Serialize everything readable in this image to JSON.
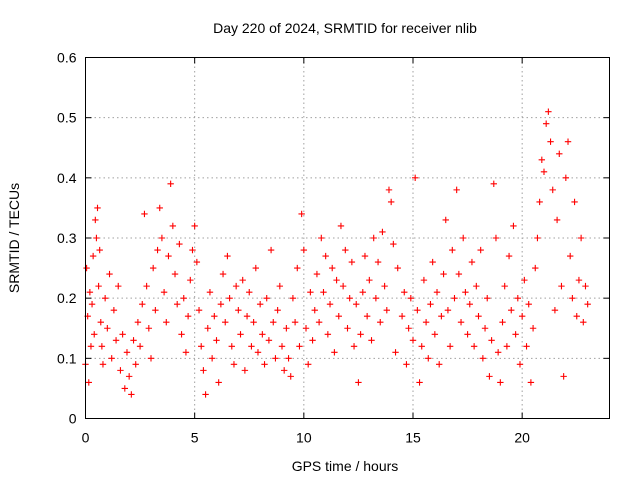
{
  "chart_data": {
    "type": "scatter",
    "title": "Day 220 of 2024, SRMTID for receiver nlib",
    "xlabel": "GPS time / hours",
    "ylabel": "SRMTID / TECUs",
    "xlim": [
      0,
      24
    ],
    "ylim": [
      0,
      0.6
    ],
    "x_ticks": [
      0,
      5,
      10,
      15,
      20
    ],
    "x_tick_labels": [
      "0",
      "5",
      "10",
      "15",
      "20"
    ],
    "y_ticks": [
      0,
      0.1,
      0.2,
      0.3,
      0.4,
      0.5,
      0.6
    ],
    "y_tick_labels": [
      "0",
      "0.1",
      "0.2",
      "0.3",
      "0.4",
      "0.5",
      "0.6"
    ],
    "grid": true,
    "marker": "plus",
    "color": "#ff0000",
    "series": [
      {
        "name": "SRMTID",
        "points": [
          [
            0.0,
            0.09
          ],
          [
            0.05,
            0.25
          ],
          [
            0.1,
            0.17
          ],
          [
            0.15,
            0.06
          ],
          [
            0.2,
            0.21
          ],
          [
            0.25,
            0.12
          ],
          [
            0.3,
            0.19
          ],
          [
            0.35,
            0.27
          ],
          [
            0.4,
            0.14
          ],
          [
            0.45,
            0.33
          ],
          [
            0.5,
            0.3
          ],
          [
            0.55,
            0.35
          ],
          [
            0.6,
            0.22
          ],
          [
            0.65,
            0.28
          ],
          [
            0.7,
            0.16
          ],
          [
            0.75,
            0.12
          ],
          [
            0.8,
            0.09
          ],
          [
            0.9,
            0.2
          ],
          [
            1.0,
            0.15
          ],
          [
            1.1,
            0.24
          ],
          [
            1.2,
            0.1
          ],
          [
            1.3,
            0.18
          ],
          [
            1.4,
            0.13
          ],
          [
            1.5,
            0.22
          ],
          [
            1.6,
            0.08
          ],
          [
            1.7,
            0.14
          ],
          [
            1.8,
            0.05
          ],
          [
            1.9,
            0.11
          ],
          [
            2.0,
            0.07
          ],
          [
            2.1,
            0.04
          ],
          [
            2.2,
            0.13
          ],
          [
            2.3,
            0.09
          ],
          [
            2.4,
            0.16
          ],
          [
            2.5,
            0.12
          ],
          [
            2.6,
            0.19
          ],
          [
            2.7,
            0.34
          ],
          [
            2.8,
            0.22
          ],
          [
            2.9,
            0.15
          ],
          [
            3.0,
            0.1
          ],
          [
            3.1,
            0.25
          ],
          [
            3.2,
            0.18
          ],
          [
            3.3,
            0.28
          ],
          [
            3.4,
            0.35
          ],
          [
            3.5,
            0.3
          ],
          [
            3.6,
            0.21
          ],
          [
            3.7,
            0.16
          ],
          [
            3.8,
            0.27
          ],
          [
            3.9,
            0.39
          ],
          [
            4.0,
            0.32
          ],
          [
            4.1,
            0.24
          ],
          [
            4.2,
            0.19
          ],
          [
            4.3,
            0.29
          ],
          [
            4.4,
            0.14
          ],
          [
            4.5,
            0.2
          ],
          [
            4.6,
            0.11
          ],
          [
            4.7,
            0.17
          ],
          [
            4.8,
            0.23
          ],
          [
            4.9,
            0.28
          ],
          [
            5.0,
            0.32
          ],
          [
            5.1,
            0.26
          ],
          [
            5.2,
            0.18
          ],
          [
            5.3,
            0.12
          ],
          [
            5.4,
            0.08
          ],
          [
            5.5,
            0.04
          ],
          [
            5.6,
            0.15
          ],
          [
            5.7,
            0.21
          ],
          [
            5.8,
            0.1
          ],
          [
            5.9,
            0.17
          ],
          [
            6.0,
            0.13
          ],
          [
            6.1,
            0.06
          ],
          [
            6.2,
            0.19
          ],
          [
            6.3,
            0.24
          ],
          [
            6.4,
            0.16
          ],
          [
            6.5,
            0.27
          ],
          [
            6.6,
            0.2
          ],
          [
            6.7,
            0.12
          ],
          [
            6.8,
            0.09
          ],
          [
            6.9,
            0.22
          ],
          [
            7.0,
            0.18
          ],
          [
            7.1,
            0.14
          ],
          [
            7.2,
            0.23
          ],
          [
            7.3,
            0.08
          ],
          [
            7.4,
            0.17
          ],
          [
            7.5,
            0.21
          ],
          [
            7.6,
            0.12
          ],
          [
            7.7,
            0.16
          ],
          [
            7.8,
            0.25
          ],
          [
            7.9,
            0.11
          ],
          [
            8.0,
            0.19
          ],
          [
            8.1,
            0.14
          ],
          [
            8.2,
            0.09
          ],
          [
            8.3,
            0.2
          ],
          [
            8.4,
            0.13
          ],
          [
            8.5,
            0.28
          ],
          [
            8.6,
            0.16
          ],
          [
            8.7,
            0.1
          ],
          [
            8.8,
            0.18
          ],
          [
            8.9,
            0.22
          ],
          [
            9.0,
            0.12
          ],
          [
            9.1,
            0.08
          ],
          [
            9.2,
            0.15
          ],
          [
            9.3,
            0.1
          ],
          [
            9.4,
            0.07
          ],
          [
            9.5,
            0.2
          ],
          [
            9.6,
            0.16
          ],
          [
            9.7,
            0.25
          ],
          [
            9.8,
            0.12
          ],
          [
            9.9,
            0.34
          ],
          [
            10.0,
            0.28
          ],
          [
            10.1,
            0.15
          ],
          [
            10.2,
            0.09
          ],
          [
            10.3,
            0.21
          ],
          [
            10.4,
            0.13
          ],
          [
            10.5,
            0.18
          ],
          [
            10.6,
            0.24
          ],
          [
            10.7,
            0.16
          ],
          [
            10.8,
            0.3
          ],
          [
            10.9,
            0.21
          ],
          [
            11.0,
            0.27
          ],
          [
            11.1,
            0.14
          ],
          [
            11.2,
            0.19
          ],
          [
            11.3,
            0.25
          ],
          [
            11.4,
            0.11
          ],
          [
            11.5,
            0.23
          ],
          [
            11.6,
            0.17
          ],
          [
            11.7,
            0.32
          ],
          [
            11.8,
            0.22
          ],
          [
            11.9,
            0.28
          ],
          [
            12.0,
            0.15
          ],
          [
            12.1,
            0.2
          ],
          [
            12.2,
            0.26
          ],
          [
            12.3,
            0.12
          ],
          [
            12.4,
            0.19
          ],
          [
            12.5,
            0.06
          ],
          [
            12.6,
            0.14
          ],
          [
            12.7,
            0.21
          ],
          [
            12.8,
            0.27
          ],
          [
            12.9,
            0.17
          ],
          [
            13.0,
            0.23
          ],
          [
            13.1,
            0.13
          ],
          [
            13.2,
            0.3
          ],
          [
            13.3,
            0.2
          ],
          [
            13.4,
            0.26
          ],
          [
            13.5,
            0.16
          ],
          [
            13.6,
            0.31
          ],
          [
            13.7,
            0.22
          ],
          [
            13.8,
            0.18
          ],
          [
            13.9,
            0.38
          ],
          [
            14.0,
            0.36
          ],
          [
            14.1,
            0.29
          ],
          [
            14.2,
            0.11
          ],
          [
            14.3,
            0.25
          ],
          [
            14.5,
            0.17
          ],
          [
            14.6,
            0.21
          ],
          [
            14.7,
            0.09
          ],
          [
            14.8,
            0.15
          ],
          [
            14.9,
            0.2
          ],
          [
            15.0,
            0.13
          ],
          [
            15.1,
            0.4
          ],
          [
            15.2,
            0.18
          ],
          [
            15.3,
            0.06
          ],
          [
            15.4,
            0.12
          ],
          [
            15.5,
            0.23
          ],
          [
            15.6,
            0.16
          ],
          [
            15.7,
            0.1
          ],
          [
            15.8,
            0.19
          ],
          [
            15.9,
            0.26
          ],
          [
            16.0,
            0.14
          ],
          [
            16.1,
            0.21
          ],
          [
            16.2,
            0.09
          ],
          [
            16.3,
            0.17
          ],
          [
            16.4,
            0.24
          ],
          [
            16.5,
            0.33
          ],
          [
            16.6,
            0.18
          ],
          [
            16.7,
            0.12
          ],
          [
            16.8,
            0.28
          ],
          [
            16.9,
            0.2
          ],
          [
            17.0,
            0.38
          ],
          [
            17.1,
            0.24
          ],
          [
            17.2,
            0.16
          ],
          [
            17.3,
            0.3
          ],
          [
            17.4,
            0.21
          ],
          [
            17.5,
            0.14
          ],
          [
            17.6,
            0.19
          ],
          [
            17.7,
            0.26
          ],
          [
            17.8,
            0.12
          ],
          [
            17.9,
            0.22
          ],
          [
            18.0,
            0.17
          ],
          [
            18.1,
            0.28
          ],
          [
            18.2,
            0.1
          ],
          [
            18.3,
            0.15
          ],
          [
            18.4,
            0.2
          ],
          [
            18.5,
            0.07
          ],
          [
            18.6,
            0.13
          ],
          [
            18.7,
            0.39
          ],
          [
            18.8,
            0.3
          ],
          [
            18.9,
            0.11
          ],
          [
            19.0,
            0.06
          ],
          [
            19.1,
            0.16
          ],
          [
            19.2,
            0.22
          ],
          [
            19.3,
            0.12
          ],
          [
            19.4,
            0.27
          ],
          [
            19.5,
            0.18
          ],
          [
            19.6,
            0.32
          ],
          [
            19.7,
            0.14
          ],
          [
            19.8,
            0.2
          ],
          [
            19.9,
            0.09
          ],
          [
            20.0,
            0.17
          ],
          [
            20.1,
            0.23
          ],
          [
            20.2,
            0.12
          ],
          [
            20.3,
            0.19
          ],
          [
            20.4,
            0.06
          ],
          [
            20.5,
            0.15
          ],
          [
            20.6,
            0.25
          ],
          [
            20.7,
            0.3
          ],
          [
            20.8,
            0.36
          ],
          [
            20.9,
            0.43
          ],
          [
            21.0,
            0.41
          ],
          [
            21.1,
            0.49
          ],
          [
            21.2,
            0.51
          ],
          [
            21.3,
            0.46
          ],
          [
            21.4,
            0.38
          ],
          [
            21.5,
            0.18
          ],
          [
            21.6,
            0.33
          ],
          [
            21.7,
            0.44
          ],
          [
            21.8,
            0.22
          ],
          [
            21.9,
            0.07
          ],
          [
            22.0,
            0.4
          ],
          [
            22.1,
            0.46
          ],
          [
            22.2,
            0.27
          ],
          [
            22.3,
            0.2
          ],
          [
            22.4,
            0.36
          ],
          [
            22.5,
            0.17
          ],
          [
            22.6,
            0.23
          ],
          [
            22.7,
            0.3
          ],
          [
            22.8,
            0.16
          ],
          [
            22.9,
            0.22
          ],
          [
            23.0,
            0.19
          ]
        ]
      }
    ]
  }
}
